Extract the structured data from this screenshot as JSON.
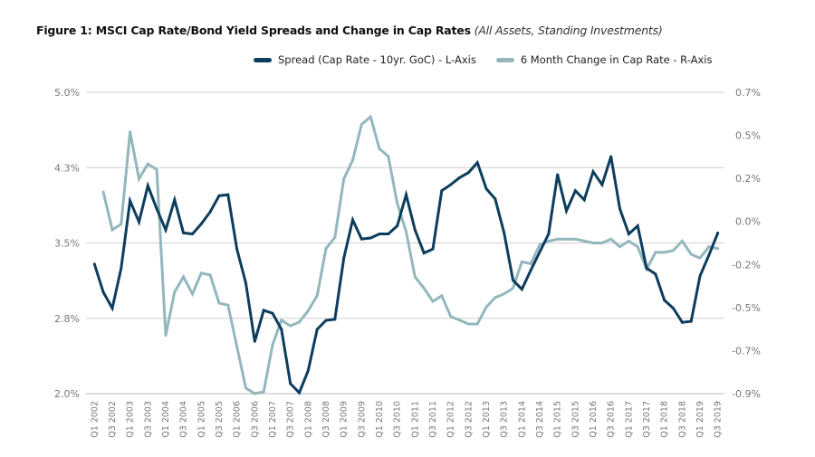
{
  "chart_data": {
    "type": "line",
    "title": "Figure 1: MSCI Cap Rate/Bond Yield Spreads and Change in Cap Rates",
    "subtitle": "(All Assets, Standing Investments)",
    "legend_position": "top-right",
    "grid": true,
    "colors": {
      "spread": "#0d3d5e",
      "change": "#93b7bd",
      "grid": "#d0d0d0"
    },
    "x_tick_labels": [
      "Q1 2002",
      "Q3 2002",
      "Q1 2003",
      "Q3 2003",
      "Q1 2004",
      "Q3 2004",
      "Q1 2005",
      "Q3 2005",
      "Q1 2006",
      "Q3 2006",
      "Q1 2007",
      "Q3 2007",
      "Q1 2008",
      "Q3 2008",
      "Q1 2009",
      "Q3 2009",
      "Q1 2010",
      "Q3 2010",
      "Q1 2011",
      "Q3 2011",
      "Q1 2012",
      "Q3 2012",
      "Q1 2013",
      "Q3 2013",
      "Q1 2014",
      "Q3 2014",
      "Q1 2015",
      "Q3 2015",
      "Q1 2016",
      "Q3 2016",
      "Q1 2017",
      "Q3 2017",
      "Q1 2018",
      "Q3 2018",
      "Q1 2019",
      "Q3 2019"
    ],
    "x_range": [
      "Q1 2002",
      "Q3 2019"
    ],
    "left_axis": {
      "ylim": [
        2.0,
        5.0
      ],
      "ticks": [
        2.0,
        2.75,
        3.5,
        4.25,
        5.0
      ],
      "tick_labels": [
        "2.0%",
        "2.8%",
        "3.5%",
        "4.3%",
        "5.0%"
      ]
    },
    "right_axis": {
      "ylim": [
        -0.9,
        0.7
      ],
      "tick_labels": [
        "-0.9%",
        "-0.7%",
        "-0.5%",
        "-0.2%",
        "0.0%",
        "0.2%",
        "0.5%",
        "0.7%"
      ]
    },
    "series": [
      {
        "name": "Spread (Cap Rate - 10yr. GoC) - L-Axis",
        "axis": "left",
        "values": [
          3.29,
          3.01,
          2.85,
          3.25,
          3.92,
          3.71,
          4.07,
          3.84,
          3.63,
          3.93,
          3.6,
          3.59,
          3.69,
          3.81,
          3.97,
          3.98,
          3.44,
          3.1,
          2.52,
          2.83,
          2.8,
          2.64,
          2.1,
          2.01,
          2.23,
          2.64,
          2.73,
          2.74,
          3.35,
          3.73,
          3.54,
          3.55,
          3.59,
          3.59,
          3.67,
          3.98,
          3.63,
          3.4,
          3.44,
          4.02,
          4.08,
          4.15,
          4.2,
          4.3,
          4.04,
          3.94,
          3.6,
          3.13,
          3.04,
          3.23,
          3.41,
          3.59,
          4.18,
          3.82,
          4.02,
          3.93,
          4.21,
          4.08,
          4.36,
          3.84,
          3.59,
          3.67,
          3.25,
          3.19,
          2.93,
          2.85,
          2.71,
          2.72,
          3.17,
          3.38,
          3.6
        ]
      },
      {
        "name": "6 Month Change in Cap Rate - R-Axis",
        "axis": "right",
        "values": [
          null,
          0.17,
          -0.03,
          0.0,
          0.49,
          0.24,
          0.32,
          0.29,
          -0.59,
          -0.36,
          -0.28,
          -0.37,
          -0.26,
          -0.27,
          -0.42,
          -0.43,
          -0.65,
          -0.87,
          -0.9,
          -0.89,
          -0.64,
          -0.51,
          -0.54,
          -0.52,
          -0.46,
          -0.38,
          -0.13,
          -0.07,
          0.24,
          0.34,
          0.53,
          0.57,
          0.4,
          0.36,
          0.11,
          -0.04,
          -0.28,
          -0.34,
          -0.41,
          -0.38,
          -0.49,
          -0.51,
          -0.53,
          -0.53,
          -0.44,
          -0.39,
          -0.37,
          -0.34,
          -0.2,
          -0.21,
          -0.11,
          -0.09,
          -0.08,
          -0.08,
          -0.08,
          -0.09,
          -0.1,
          -0.1,
          -0.08,
          -0.12,
          -0.09,
          -0.12,
          -0.24,
          -0.15,
          -0.15,
          -0.14,
          -0.09,
          -0.16,
          -0.18,
          -0.12,
          -0.13
        ]
      }
    ]
  }
}
